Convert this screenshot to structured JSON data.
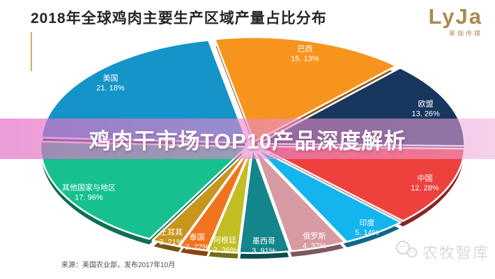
{
  "header": {
    "title": "2018年全球鸡肉主要生产区域产量占比分布",
    "title_color": "#262626",
    "accent_color": "#e2a561"
  },
  "logo": {
    "text": "LyJa",
    "subtext": "莱伽传媒",
    "color": "#aa8a52"
  },
  "overlay_banner": {
    "text": "鸡肉干市场TOP10产品深度解析",
    "text_color": "#ffffff",
    "bg_left": "rgba(227,108,196,0.68)",
    "bg_right": "rgba(240,170,220,0.55)"
  },
  "watermark": {
    "icon": "wechat-bubbles-icon",
    "text": "农牧智库",
    "color": "#dadada"
  },
  "source_note": {
    "text": "来源：美国农业部，发布2017年10月"
  },
  "chart_data": {
    "type": "pie",
    "title": "2018年全球鸡肉主要生产区域产量占比分布",
    "unit": "%",
    "style": "3d-exploded",
    "start_angle_deg": -11,
    "direction": "clockwise",
    "label_text_color": "#ffffff",
    "slices": [
      {
        "label": "巴西",
        "value": 15.13,
        "display": "15. 13%",
        "color": "#f7941e"
      },
      {
        "label": "欧盟",
        "value": 13.26,
        "display": "13. 26%",
        "color": "#17375e"
      },
      {
        "label": "中国",
        "value": 12.28,
        "display": "12. 28%",
        "color": "#ee403d"
      },
      {
        "label": "印度",
        "value": 5.14,
        "display": "5. 14%",
        "color": "#14b4ee"
      },
      {
        "label": "俄罗斯",
        "value": 4.37,
        "display": "4. 37%",
        "color": "#d89aa2"
      },
      {
        "label": "墨西哥",
        "value": 3.91,
        "display": "3. 91%",
        "color": "#12868a"
      },
      {
        "label": "阿根廷",
        "value": 2.36,
        "display": "2. 36%",
        "color": "#c2bd22"
      },
      {
        "label": "泰国",
        "value": 2.22,
        "display": "2. 22%",
        "color": "#f2731d"
      },
      {
        "label": "土耳其",
        "value": 2.21,
        "display": "2. 21%",
        "color": "#c8951d"
      },
      {
        "label": "其他国家与地区",
        "value": 17.96,
        "display": "17. 96%",
        "color": "#16c08f"
      },
      {
        "label": "美国",
        "value": 21.18,
        "display": "21. 18%",
        "color": "#1494c9"
      }
    ]
  }
}
